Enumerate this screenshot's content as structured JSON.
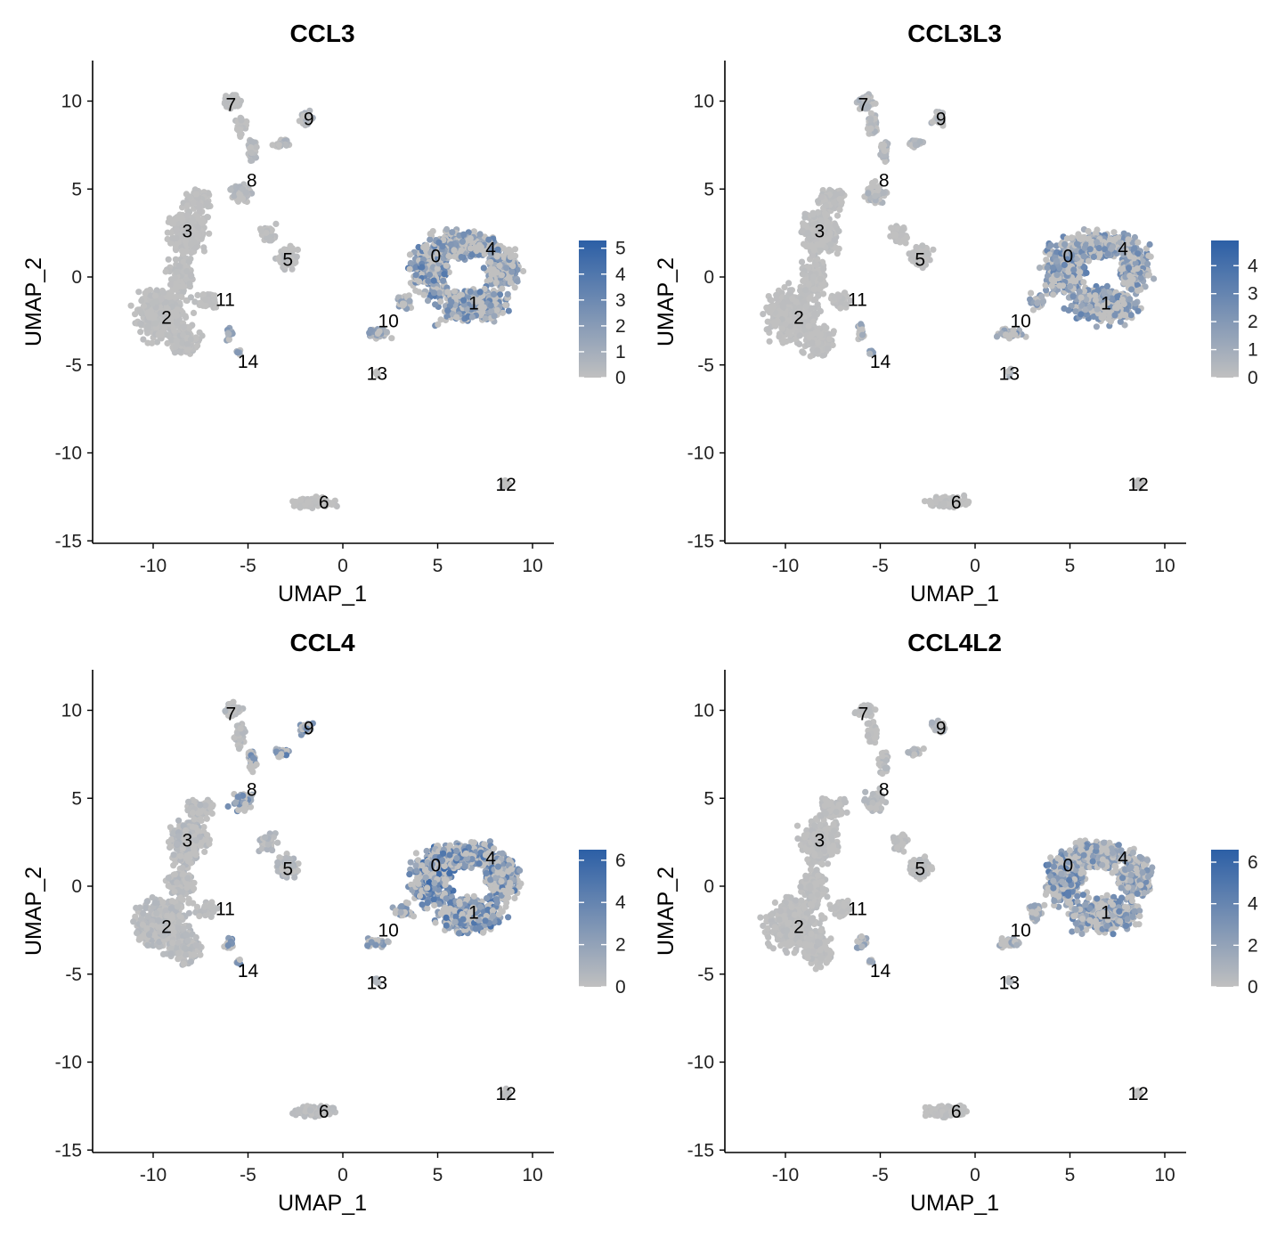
{
  "chart_data": [
    {
      "type": "scatter",
      "title": "CCL3",
      "xlabel": "UMAP_1",
      "ylabel": "UMAP_2",
      "xlim": [
        -13,
        11
      ],
      "ylim": [
        -15,
        12
      ],
      "xticks": [
        -10,
        -5,
        0,
        5,
        10
      ],
      "yticks": [
        -15,
        -10,
        -5,
        0,
        5,
        10
      ],
      "grid": false,
      "legend_placement": "right",
      "color_low": "#c0c0c0",
      "color_high": "#2c5fa6",
      "legend_max": 5.3,
      "legend_ticks": [
        0,
        1,
        2,
        3,
        4,
        5
      ],
      "clusters": [
        {
          "label": "0",
          "x": 4.9,
          "y": 1.2
        },
        {
          "label": "1",
          "x": 6.9,
          "y": -1.5
        },
        {
          "label": "2",
          "x": -9.3,
          "y": -2.3
        },
        {
          "label": "3",
          "x": -8.2,
          "y": 2.6
        },
        {
          "label": "4",
          "x": 7.8,
          "y": 1.6
        },
        {
          "label": "5",
          "x": -2.9,
          "y": 1.0
        },
        {
          "label": "6",
          "x": -1.0,
          "y": -12.8
        },
        {
          "label": "7",
          "x": -5.9,
          "y": 9.8
        },
        {
          "label": "8",
          "x": -4.8,
          "y": 5.5
        },
        {
          "label": "9",
          "x": -1.8,
          "y": 9.0
        },
        {
          "label": "10",
          "x": 2.4,
          "y": -2.5
        },
        {
          "label": "11",
          "x": -6.2,
          "y": -1.3
        },
        {
          "label": "12",
          "x": 8.6,
          "y": -11.8
        },
        {
          "label": "13",
          "x": 1.8,
          "y": -5.5
        },
        {
          "label": "14",
          "x": -5.0,
          "y": -4.8
        }
      ],
      "cluster_expression": {
        "0": 2.4,
        "1": 2.1,
        "2": 0.15,
        "3": 0.1,
        "4": 2.0,
        "5": 0.2,
        "6": 0.1,
        "7": 0.15,
        "8": 0.4,
        "9": 0.6,
        "10": 1.4,
        "11": 0.1,
        "12": 0.1,
        "13": 0.6,
        "14": 1.5
      }
    },
    {
      "type": "scatter",
      "title": "CCL3L3",
      "xlabel": "UMAP_1",
      "ylabel": "UMAP_2",
      "xlim": [
        -13,
        11
      ],
      "ylim": [
        -15,
        12
      ],
      "xticks": [
        -10,
        -5,
        0,
        5,
        10
      ],
      "yticks": [
        -15,
        -10,
        -5,
        0,
        5,
        10
      ],
      "grid": false,
      "legend_placement": "right",
      "color_low": "#c0c0c0",
      "color_high": "#2c5fa6",
      "legend_max": 4.9,
      "legend_ticks": [
        0,
        1,
        2,
        3,
        4
      ],
      "clusters": [
        {
          "label": "0",
          "x": 4.9,
          "y": 1.2
        },
        {
          "label": "1",
          "x": 6.9,
          "y": -1.5
        },
        {
          "label": "2",
          "x": -9.3,
          "y": -2.3
        },
        {
          "label": "3",
          "x": -8.2,
          "y": 2.6
        },
        {
          "label": "4",
          "x": 7.8,
          "y": 1.6
        },
        {
          "label": "5",
          "x": -2.9,
          "y": 1.0
        },
        {
          "label": "6",
          "x": -1.0,
          "y": -12.8
        },
        {
          "label": "7",
          "x": -5.9,
          "y": 9.8
        },
        {
          "label": "8",
          "x": -4.8,
          "y": 5.5
        },
        {
          "label": "9",
          "x": -1.8,
          "y": 9.0
        },
        {
          "label": "10",
          "x": 2.4,
          "y": -2.5
        },
        {
          "label": "11",
          "x": -6.2,
          "y": -1.3
        },
        {
          "label": "12",
          "x": 8.6,
          "y": -11.8
        },
        {
          "label": "13",
          "x": 1.8,
          "y": -5.5
        },
        {
          "label": "14",
          "x": -5.0,
          "y": -4.8
        }
      ],
      "cluster_expression": {
        "0": 2.0,
        "1": 1.9,
        "2": 0.1,
        "3": 0.15,
        "4": 1.8,
        "5": 0.1,
        "6": 0.1,
        "7": 0.5,
        "8": 0.6,
        "9": 0.5,
        "10": 1.6,
        "11": 0.1,
        "12": 0.1,
        "13": 0.5,
        "14": 1.2
      }
    },
    {
      "type": "scatter",
      "title": "CCL4",
      "xlabel": "UMAP_1",
      "ylabel": "UMAP_2",
      "xlim": [
        -13,
        11
      ],
      "ylim": [
        -15,
        12
      ],
      "xticks": [
        -10,
        -5,
        0,
        5,
        10
      ],
      "yticks": [
        -15,
        -10,
        -5,
        0,
        5,
        10
      ],
      "grid": false,
      "legend_placement": "right",
      "color_low": "#c0c0c0",
      "color_high": "#2c5fa6",
      "legend_max": 6.5,
      "legend_ticks": [
        0,
        2,
        4,
        6
      ],
      "clusters": [
        {
          "label": "0",
          "x": 4.9,
          "y": 1.2
        },
        {
          "label": "1",
          "x": 6.9,
          "y": -1.5
        },
        {
          "label": "2",
          "x": -9.3,
          "y": -2.3
        },
        {
          "label": "3",
          "x": -8.2,
          "y": 2.6
        },
        {
          "label": "4",
          "x": 7.8,
          "y": 1.6
        },
        {
          "label": "5",
          "x": -2.9,
          "y": 1.0
        },
        {
          "label": "6",
          "x": -1.0,
          "y": -12.8
        },
        {
          "label": "7",
          "x": -5.9,
          "y": 9.8
        },
        {
          "label": "8",
          "x": -4.8,
          "y": 5.5
        },
        {
          "label": "9",
          "x": -1.8,
          "y": 9.0
        },
        {
          "label": "10",
          "x": 2.4,
          "y": -2.5
        },
        {
          "label": "11",
          "x": -6.2,
          "y": -1.3
        },
        {
          "label": "12",
          "x": 8.6,
          "y": -11.8
        },
        {
          "label": "13",
          "x": 1.8,
          "y": -5.5
        },
        {
          "label": "14",
          "x": -5.0,
          "y": -4.8
        }
      ],
      "cluster_expression": {
        "0": 3.6,
        "1": 3.3,
        "2": 0.4,
        "3": 0.5,
        "4": 3.0,
        "5": 0.6,
        "6": 0.3,
        "7": 0.5,
        "8": 2.2,
        "9": 2.8,
        "10": 2.0,
        "11": 0.3,
        "12": 0.2,
        "13": 0.6,
        "14": 2.6
      }
    },
    {
      "type": "scatter",
      "title": "CCL4L2",
      "xlabel": "UMAP_1",
      "ylabel": "UMAP_2",
      "xlim": [
        -13,
        11
      ],
      "ylim": [
        -15,
        12
      ],
      "xticks": [
        -10,
        -5,
        0,
        5,
        10
      ],
      "yticks": [
        -15,
        -10,
        -5,
        0,
        5,
        10
      ],
      "grid": false,
      "legend_placement": "right",
      "color_low": "#c0c0c0",
      "color_high": "#2c5fa6",
      "legend_max": 6.6,
      "legend_ticks": [
        0,
        2,
        4,
        6
      ],
      "clusters": [
        {
          "label": "0",
          "x": 4.9,
          "y": 1.2
        },
        {
          "label": "1",
          "x": 6.9,
          "y": -1.5
        },
        {
          "label": "2",
          "x": -9.3,
          "y": -2.3
        },
        {
          "label": "3",
          "x": -8.2,
          "y": 2.6
        },
        {
          "label": "4",
          "x": 7.8,
          "y": 1.6
        },
        {
          "label": "5",
          "x": -2.9,
          "y": 1.0
        },
        {
          "label": "6",
          "x": -1.0,
          "y": -12.8
        },
        {
          "label": "7",
          "x": -5.9,
          "y": 9.8
        },
        {
          "label": "8",
          "x": -4.8,
          "y": 5.5
        },
        {
          "label": "9",
          "x": -1.8,
          "y": 9.0
        },
        {
          "label": "10",
          "x": 2.4,
          "y": -2.5
        },
        {
          "label": "11",
          "x": -6.2,
          "y": -1.3
        },
        {
          "label": "12",
          "x": 8.6,
          "y": -11.8
        },
        {
          "label": "13",
          "x": 1.8,
          "y": -5.5
        },
        {
          "label": "14",
          "x": -5.0,
          "y": -4.8
        }
      ],
      "cluster_expression": {
        "0": 2.8,
        "1": 2.5,
        "2": 0.2,
        "3": 0.2,
        "4": 2.3,
        "5": 0.3,
        "6": 0.2,
        "7": 0.2,
        "8": 0.5,
        "9": 0.8,
        "10": 1.3,
        "11": 0.1,
        "12": 0.1,
        "13": 0.4,
        "14": 1.8
      }
    }
  ]
}
